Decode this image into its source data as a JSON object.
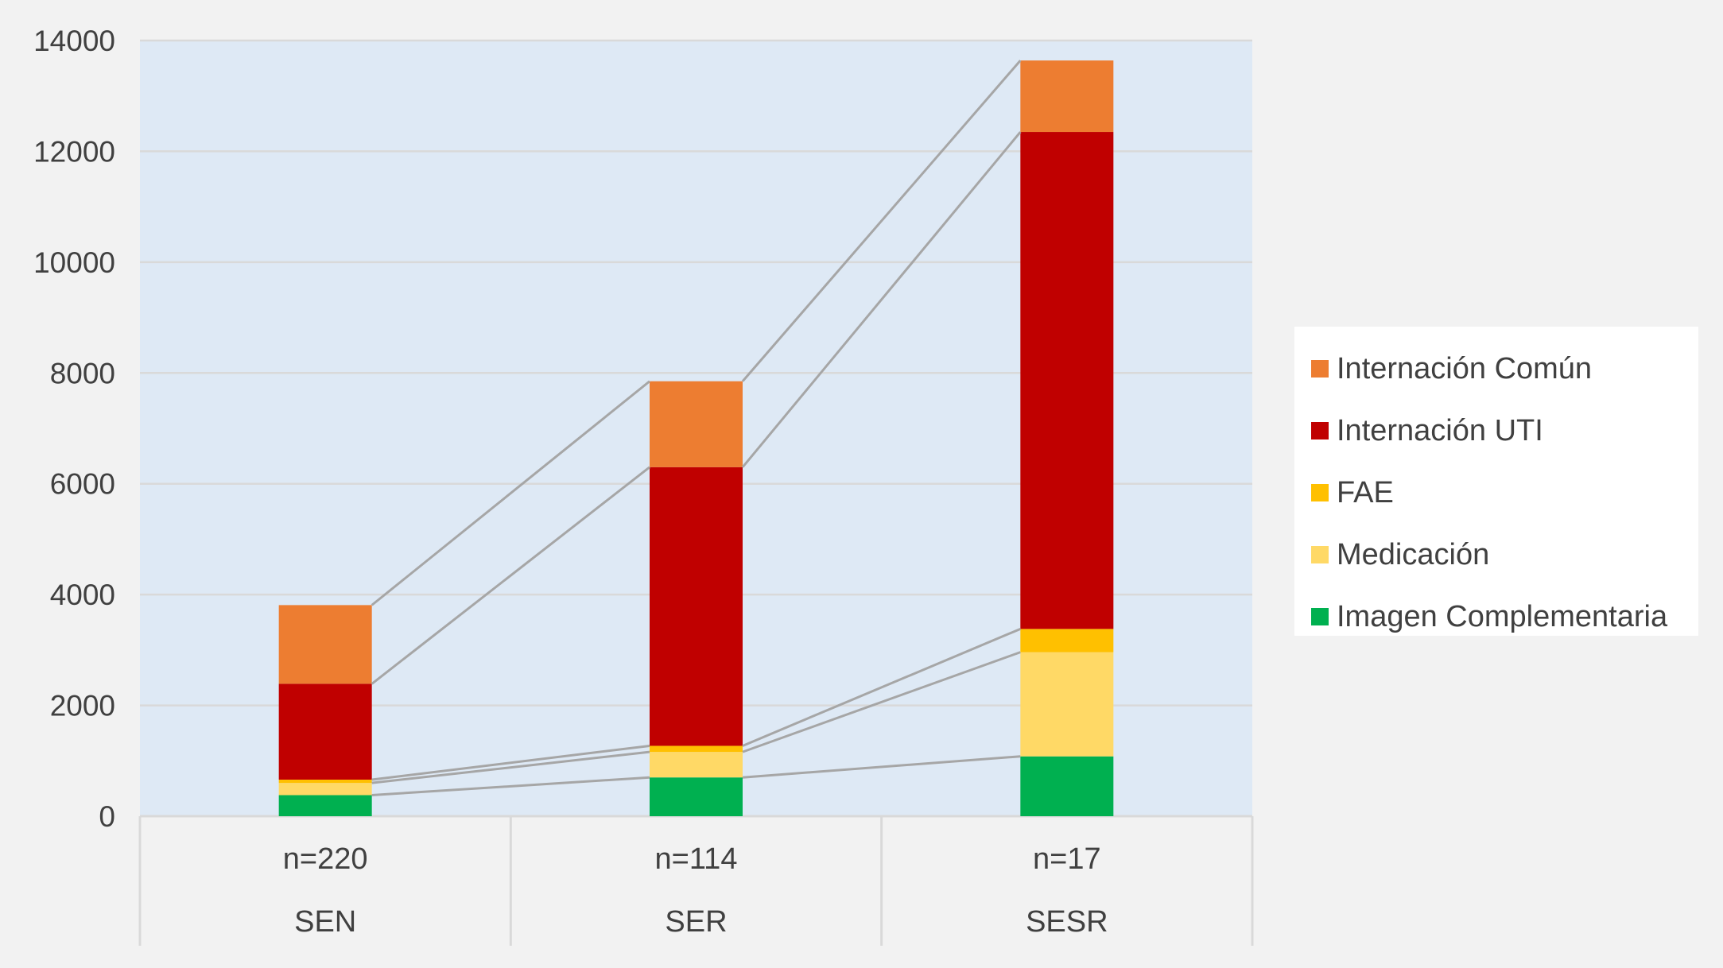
{
  "chart_data": {
    "type": "bar",
    "stacked": true,
    "categories": [
      {
        "count": "n=220",
        "group": "SEN"
      },
      {
        "count": "n=114",
        "group": "SER"
      },
      {
        "count": "n=17",
        "group": "SESR"
      }
    ],
    "series": [
      {
        "name": "Imagen Complementaria",
        "color": "#00b050",
        "values": [
          380,
          700,
          1080
        ]
      },
      {
        "name": "Medicación",
        "color": "#ffd966",
        "values": [
          220,
          460,
          1880
        ]
      },
      {
        "name": "FAE",
        "color": "#ffc000",
        "values": [
          60,
          110,
          420
        ]
      },
      {
        "name": "Internación UTI",
        "color": "#c00000",
        "values": [
          1730,
          5030,
          8970
        ]
      },
      {
        "name": "Internación Común",
        "color": "#ed7d31",
        "values": [
          1420,
          1550,
          1290
        ]
      }
    ],
    "legend_order": [
      "Internación Común",
      "Internación UTI",
      "FAE",
      "Medicación",
      "Imagen Complementaria"
    ],
    "ylim": [
      0,
      14000
    ],
    "yticks": [
      0,
      2000,
      4000,
      6000,
      8000,
      10000,
      12000,
      14000
    ],
    "grid": true,
    "connector_lines": true,
    "legend_position": "right",
    "plot_background": "#dee9f5",
    "connector_color": "#a6a6a6"
  }
}
